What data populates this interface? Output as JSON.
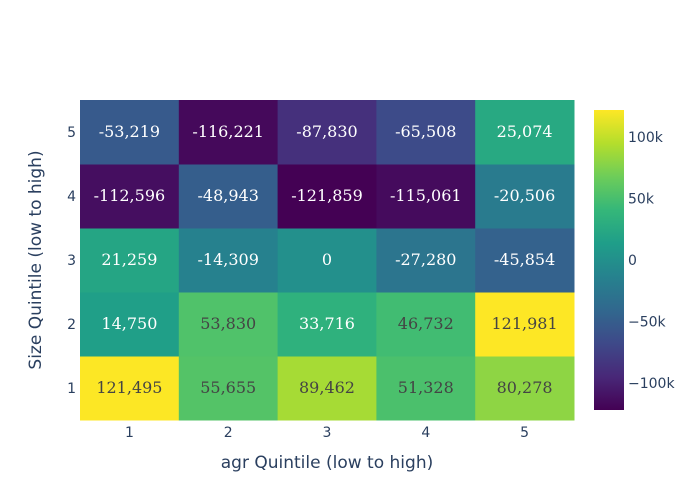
{
  "chart_data": {
    "type": "heatmap",
    "title": "",
    "xlabel": "agr Quintile (low to high)",
    "ylabel": "Size Quintile (low to high)",
    "x_categories": [
      "1",
      "2",
      "3",
      "4",
      "5"
    ],
    "y_categories": [
      "1",
      "2",
      "3",
      "4",
      "5"
    ],
    "values": [
      [
        121495,
        55655,
        89462,
        51328,
        80278
      ],
      [
        14750,
        53830,
        33716,
        46732,
        121981
      ],
      [
        21259,
        -14309,
        0,
        -27280,
        -45854
      ],
      [
        -112596,
        -48943,
        -121859,
        -115061,
        -20506
      ],
      [
        -53219,
        -116221,
        -87830,
        -65508,
        25074
      ]
    ],
    "cell_labels": [
      [
        "121,495",
        "55,655",
        "89,462",
        "51,328",
        "80,278"
      ],
      [
        "14,750",
        "53,830",
        "33,716",
        "46,732",
        "121,981"
      ],
      [
        "21,259",
        "-14,309",
        "0",
        "-27,280",
        "-45,854"
      ],
      [
        "-112,596",
        "-48,943",
        "-121,859",
        "-115,061",
        "-20,506"
      ],
      [
        "-53,219",
        "-116,221",
        "-87,830",
        "-65,508",
        "25,074"
      ]
    ],
    "zmin": -121859,
    "zmax": 121981,
    "colorscale": "Viridis",
    "colorbar": {
      "tick_values": [
        100000,
        50000,
        0,
        -50000,
        -100000
      ],
      "tick_labels": [
        "100k",
        "50k",
        "0",
        "−50k",
        "−100k"
      ]
    }
  }
}
